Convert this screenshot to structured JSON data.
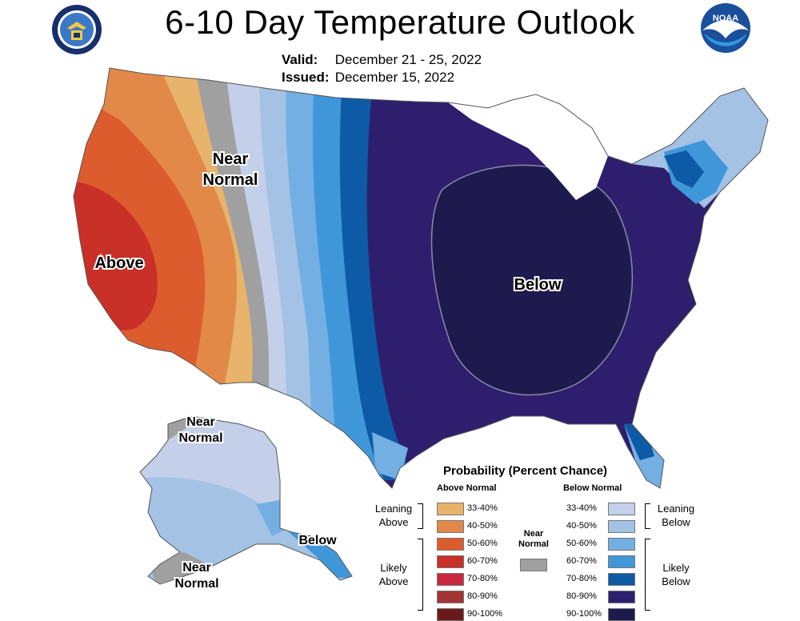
{
  "header": {
    "title": "6-10 Day Temperature Outlook",
    "valid_label": "Valid:",
    "valid_value": "December 21 - 25, 2022",
    "issued_label": "Issued:",
    "issued_value": "December 15, 2022",
    "left_logo": "department-of-commerce-seal",
    "right_logo": "noaa-logo",
    "noaa_text": "NOAA"
  },
  "map": {
    "labels": {
      "conus_near_normal": [
        "Near",
        "Normal"
      ],
      "conus_above": "Above",
      "conus_below": "Below",
      "ak_near_normal_top": [
        "Near",
        "Normal"
      ],
      "ak_near_normal_bottom": [
        "Near",
        "Normal"
      ],
      "ak_below": "Below"
    }
  },
  "legend": {
    "title": "Probability (Percent Chance)",
    "above_header": "Above Normal",
    "below_header": "Below Normal",
    "near_normal_label": [
      "Near",
      "Normal"
    ],
    "near_normal_color": "#a0a0a0",
    "leaning_above": [
      "Leaning",
      "Above"
    ],
    "likely_above": [
      "Likely",
      "Above"
    ],
    "leaning_below": [
      "Leaning",
      "Below"
    ],
    "likely_below": [
      "Likely",
      "Below"
    ],
    "above": [
      {
        "range": "33-40%",
        "color": "#e8b46c"
      },
      {
        "range": "40-50%",
        "color": "#e2894a"
      },
      {
        "range": "50-60%",
        "color": "#dc5c2e"
      },
      {
        "range": "60-70%",
        "color": "#c93027"
      },
      {
        "range": "70-80%",
        "color": "#c9283f"
      },
      {
        "range": "80-90%",
        "color": "#a33433"
      },
      {
        "range": "90-100%",
        "color": "#6b1a1c"
      }
    ],
    "below": [
      {
        "range": "33-40%",
        "color": "#c4d0ea"
      },
      {
        "range": "40-50%",
        "color": "#a4c2e4"
      },
      {
        "range": "50-60%",
        "color": "#74afe4"
      },
      {
        "range": "60-70%",
        "color": "#3f97da"
      },
      {
        "range": "70-80%",
        "color": "#0d5aa6"
      },
      {
        "range": "80-90%",
        "color": "#2e1e6e"
      },
      {
        "range": "90-100%",
        "color": "#1f1a4e"
      }
    ]
  }
}
